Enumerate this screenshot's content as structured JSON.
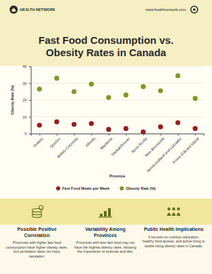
{
  "header": {
    "brand": "HEALTH NETWORK",
    "url": "www.healthnetwork.com"
  },
  "chart_data": {
    "type": "scatter",
    "title": "Fast Food Consumption vs. Obesity Rates in Canada",
    "x_label": "Province",
    "y_label": "Obesity Rate (%)",
    "categories": [
      "Ontario",
      "Quebec",
      "British Columbia",
      "Alberta",
      "Manitoba",
      "Saskatchewan",
      "Nova Scotia",
      "New Brunswick",
      "Newfoundland and Labrador",
      "Prince Edward Island"
    ],
    "series": [
      {
        "name": "Fast Food Meals per Week",
        "color": "#9b1c20",
        "marker": "circle",
        "values": [
          5,
          7,
          5.5,
          6,
          2.5,
          3,
          1,
          4,
          6.5,
          3
        ]
      },
      {
        "name": "Obesity Rate (%)",
        "color": "#7d9a22",
        "marker": "circle",
        "values": [
          26.5,
          33,
          25,
          29.5,
          21.5,
          23,
          28,
          25.5,
          34.5,
          21
        ]
      }
    ],
    "ylim": [
      0,
      40
    ],
    "yticks": [
      0,
      10,
      20,
      30,
      40
    ],
    "grid": true,
    "legend": "bottom"
  },
  "footer": {
    "sections": [
      {
        "title": "Possible Positive Correlation",
        "text": "Provinces with higher fast food consumption have higher obesity rates, but correlation does not imply causation."
      },
      {
        "title": "Variability Among Provinces",
        "text": "Provinces with less fast food may not have the highest obesity rates, showing the importance of exercise and diet."
      },
      {
        "title": "Public Health Implications",
        "text": "It focuses on nutrition education, healthy food access, and active living to tackle rising obesity rates in Canada."
      }
    ]
  }
}
